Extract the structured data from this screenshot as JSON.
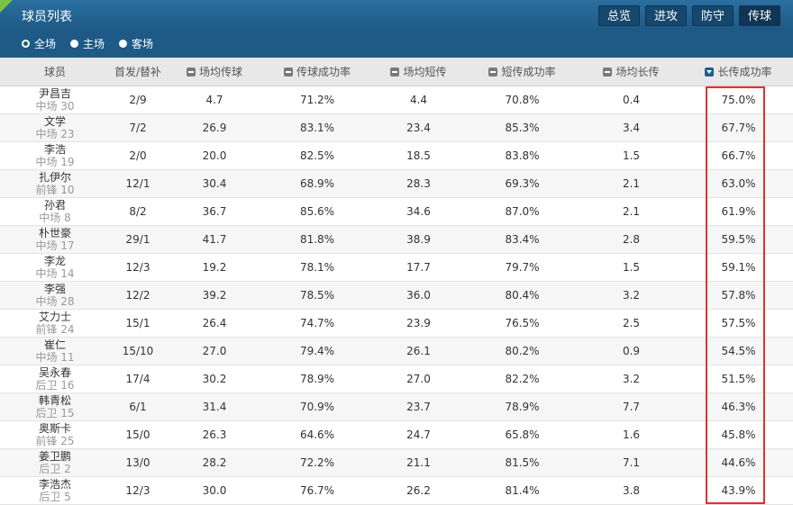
{
  "title": "球员列表",
  "tabs": [
    {
      "label": "总览",
      "active": false
    },
    {
      "label": "进攻",
      "active": false
    },
    {
      "label": "防守",
      "active": false
    },
    {
      "label": "传球",
      "active": true
    }
  ],
  "filters": [
    {
      "label": "全场",
      "checked": true
    },
    {
      "label": "主场",
      "checked": false
    },
    {
      "label": "客场",
      "checked": false
    }
  ],
  "columns": [
    {
      "label": "球员",
      "sortable": false,
      "sorted": false
    },
    {
      "label": "首发/替补",
      "sortable": false,
      "sorted": false
    },
    {
      "label": "场均传球",
      "sortable": true,
      "sorted": false
    },
    {
      "label": "传球成功率",
      "sortable": true,
      "sorted": false
    },
    {
      "label": "场均短传",
      "sortable": true,
      "sorted": false
    },
    {
      "label": "短传成功率",
      "sortable": true,
      "sorted": false
    },
    {
      "label": "场均长传",
      "sortable": true,
      "sorted": false
    },
    {
      "label": "长传成功率",
      "sortable": true,
      "sorted": true
    }
  ],
  "rows": [
    {
      "name": "尹昌吉",
      "pos": "中场 30",
      "starts": "2/9",
      "passes": "4.7",
      "pass_pct": "71.2%",
      "short": "4.4",
      "short_pct": "70.8%",
      "long": "0.4",
      "long_pct": "75.0%"
    },
    {
      "name": "文学",
      "pos": "中场 23",
      "starts": "7/2",
      "passes": "26.9",
      "pass_pct": "83.1%",
      "short": "23.4",
      "short_pct": "85.3%",
      "long": "3.4",
      "long_pct": "67.7%"
    },
    {
      "name": "李浩",
      "pos": "中场 19",
      "starts": "2/0",
      "passes": "20.0",
      "pass_pct": "82.5%",
      "short": "18.5",
      "short_pct": "83.8%",
      "long": "1.5",
      "long_pct": "66.7%"
    },
    {
      "name": "扎伊尔",
      "pos": "前锋 10",
      "starts": "12/1",
      "passes": "30.4",
      "pass_pct": "68.9%",
      "short": "28.3",
      "short_pct": "69.3%",
      "long": "2.1",
      "long_pct": "63.0%"
    },
    {
      "name": "孙君",
      "pos": "中场 8",
      "starts": "8/2",
      "passes": "36.7",
      "pass_pct": "85.6%",
      "short": "34.6",
      "short_pct": "87.0%",
      "long": "2.1",
      "long_pct": "61.9%"
    },
    {
      "name": "朴世豪",
      "pos": "中场 17",
      "starts": "29/1",
      "passes": "41.7",
      "pass_pct": "81.8%",
      "short": "38.9",
      "short_pct": "83.4%",
      "long": "2.8",
      "long_pct": "59.5%"
    },
    {
      "name": "李龙",
      "pos": "中场 14",
      "starts": "12/3",
      "passes": "19.2",
      "pass_pct": "78.1%",
      "short": "17.7",
      "short_pct": "79.7%",
      "long": "1.5",
      "long_pct": "59.1%"
    },
    {
      "name": "李强",
      "pos": "中场 28",
      "starts": "12/2",
      "passes": "39.2",
      "pass_pct": "78.5%",
      "short": "36.0",
      "short_pct": "80.4%",
      "long": "3.2",
      "long_pct": "57.8%"
    },
    {
      "name": "艾力士",
      "pos": "前锋 24",
      "starts": "15/1",
      "passes": "26.4",
      "pass_pct": "74.7%",
      "short": "23.9",
      "short_pct": "76.5%",
      "long": "2.5",
      "long_pct": "57.5%"
    },
    {
      "name": "崔仁",
      "pos": "中场 11",
      "starts": "15/10",
      "passes": "27.0",
      "pass_pct": "79.4%",
      "short": "26.1",
      "short_pct": "80.2%",
      "long": "0.9",
      "long_pct": "54.5%"
    },
    {
      "name": "吴永春",
      "pos": "后卫 16",
      "starts": "17/4",
      "passes": "30.2",
      "pass_pct": "78.9%",
      "short": "27.0",
      "short_pct": "82.2%",
      "long": "3.2",
      "long_pct": "51.5%"
    },
    {
      "name": "韩青松",
      "pos": "后卫 15",
      "starts": "6/1",
      "passes": "31.4",
      "pass_pct": "70.9%",
      "short": "23.7",
      "short_pct": "78.9%",
      "long": "7.7",
      "long_pct": "46.3%"
    },
    {
      "name": "奥斯卡",
      "pos": "前锋 25",
      "starts": "15/0",
      "passes": "26.3",
      "pass_pct": "64.6%",
      "short": "24.7",
      "short_pct": "65.8%",
      "long": "1.6",
      "long_pct": "45.8%"
    },
    {
      "name": "姜卫鹏",
      "pos": "后卫 2",
      "starts": "13/0",
      "passes": "28.2",
      "pass_pct": "72.2%",
      "short": "21.1",
      "short_pct": "81.5%",
      "long": "7.1",
      "long_pct": "44.6%"
    },
    {
      "name": "李浩杰",
      "pos": "后卫 5",
      "starts": "12/3",
      "passes": "30.0",
      "pass_pct": "76.7%",
      "short": "26.2",
      "short_pct": "81.4%",
      "long": "3.8",
      "long_pct": "43.9%"
    }
  ],
  "colors": {
    "header_bg": "#1e5a86",
    "accent": "#7cc242",
    "highlight": "#e0322b"
  }
}
